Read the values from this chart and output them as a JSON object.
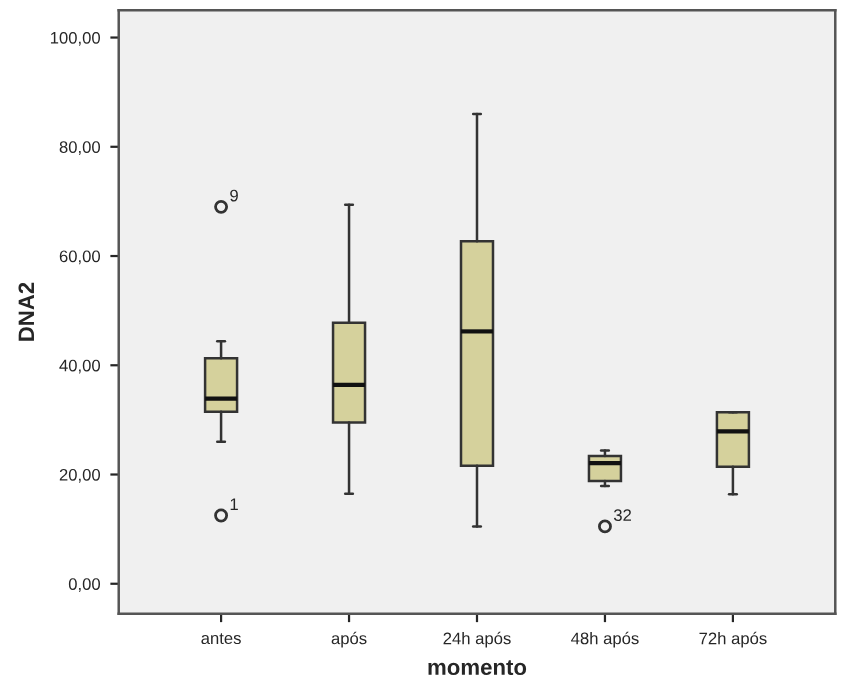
{
  "chart_data": {
    "type": "box",
    "xlabel": "momento",
    "ylabel": "DNA2",
    "categories": [
      "antes",
      "após",
      "24h após",
      "48h após",
      "72h após"
    ],
    "series": [
      {
        "color": "#d5d19c",
        "boxes": [
          {
            "low": 26.0,
            "q1": 31.5,
            "median": 33.9,
            "q3": 41.3,
            "high": 44.4,
            "outliers": [
              69.0,
              12.5
            ]
          },
          {
            "low": 16.5,
            "q1": 29.5,
            "median": 36.4,
            "q3": 47.8,
            "high": 69.4
          },
          {
            "low": 10.5,
            "q1": 21.6,
            "median": 46.2,
            "q3": 62.7,
            "high": 86.0
          },
          {
            "low": 17.9,
            "q1": 18.8,
            "median": 22.1,
            "q3": 23.4,
            "high": 24.4,
            "outliers": [
              10.5
            ]
          },
          {
            "low": 16.4,
            "q1": 21.4,
            "median": 27.9,
            "q3": 31.4,
            "high": 31.4
          }
        ]
      }
    ],
    "ylim": [
      -5.5,
      105
    ],
    "yticks": [
      {
        "value": 0,
        "label": "0,00"
      },
      {
        "value": 20,
        "label": "20,00"
      },
      {
        "value": 40,
        "label": "40,00"
      },
      {
        "value": 60,
        "label": "60,00"
      },
      {
        "value": 80,
        "label": "80,00"
      },
      {
        "value": 100,
        "label": "100,00"
      }
    ],
    "annotations": [
      "9",
      "1",
      "32"
    ],
    "grid": false,
    "legend": false
  }
}
